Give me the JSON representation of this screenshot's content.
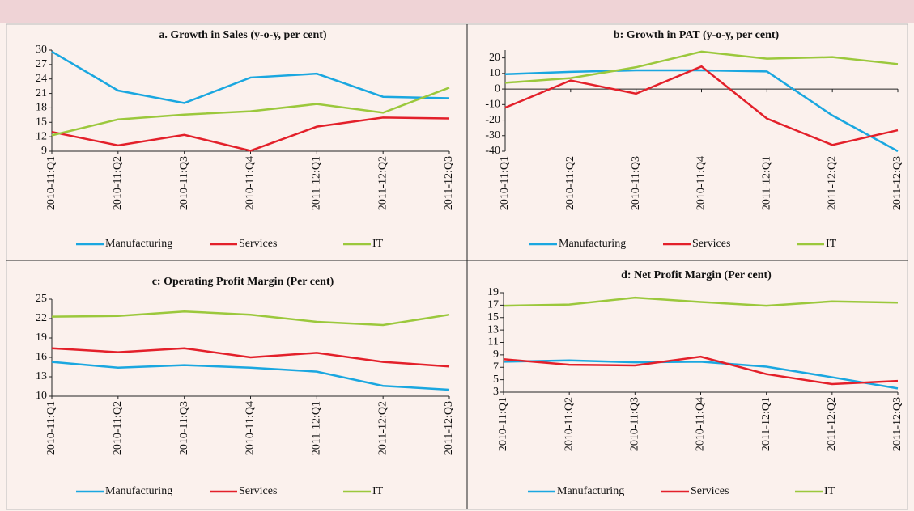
{
  "chart_data": [
    {
      "type": "line",
      "title": "a. Growth in Sales (y-o-y, per cent)",
      "categories": [
        "2010-11:Q1",
        "2010-11:Q2",
        "2010-11:Q3",
        "2010-11:Q4",
        "2011-12:Q1",
        "2011-12:Q2",
        "2011-12:Q3"
      ],
      "series": [
        {
          "name": "Manufacturing",
          "color": "#1aa7e0",
          "values": [
            29.7,
            21.6,
            19.0,
            24.3,
            25.1,
            20.3,
            20.0
          ]
        },
        {
          "name": "Services",
          "color": "#e3202a",
          "values": [
            13.0,
            10.2,
            12.4,
            9.1,
            14.1,
            16.0,
            15.8
          ]
        },
        {
          "name": "IT",
          "color": "#9bc83c",
          "values": [
            12.3,
            15.6,
            16.6,
            17.3,
            18.8,
            17.0,
            22.2
          ]
        }
      ],
      "ylim": [
        9,
        30
      ],
      "yticks": [
        9,
        12,
        15,
        18,
        21,
        24,
        27,
        30
      ]
    },
    {
      "type": "line",
      "title": "b: Growth  in PAT (y-o-y, per cent)",
      "categories": [
        "2010-11:Q1",
        "2010-11:Q2",
        "2010-11:Q3",
        "2010-11:Q4",
        "2011-12:Q1",
        "2011-12:Q2",
        "2011-12:Q3"
      ],
      "series": [
        {
          "name": "Manufacturing",
          "color": "#1aa7e0",
          "values": [
            9.5,
            11,
            12,
            12,
            11.3,
            -17,
            -40
          ]
        },
        {
          "name": "Services",
          "color": "#e3202a",
          "values": [
            -12,
            5.5,
            -3,
            14.5,
            -19,
            -36,
            -26.5
          ]
        },
        {
          "name": "IT",
          "color": "#9bc83c",
          "values": [
            4,
            7,
            14,
            24,
            19.5,
            20.5,
            16
          ]
        }
      ],
      "ylim": [
        -40,
        25
      ],
      "yticks": [
        -40,
        -30,
        -20,
        -10,
        0,
        10,
        20
      ]
    },
    {
      "type": "line",
      "title": "c: Operating Profit Margin (Per cent)",
      "categories": [
        "2010-11:Q1",
        "2010-11:Q2",
        "2010-11:Q3",
        "2010-11:Q4",
        "2011-12:Q1",
        "2011-12:Q2",
        "2011-12:Q3"
      ],
      "series": [
        {
          "name": "Manufacturing",
          "color": "#1aa7e0",
          "values": [
            15.3,
            14.4,
            14.8,
            14.4,
            13.8,
            11.6,
            11.0
          ]
        },
        {
          "name": "Services",
          "color": "#e3202a",
          "values": [
            17.4,
            16.8,
            17.4,
            16.0,
            16.7,
            15.3,
            14.6
          ]
        },
        {
          "name": "IT",
          "color": "#9bc83c",
          "values": [
            22.3,
            22.4,
            23.1,
            22.6,
            21.5,
            21.0,
            22.6
          ]
        }
      ],
      "ylim": [
        10,
        25
      ],
      "yticks": [
        10,
        13,
        16,
        19,
        22,
        25
      ]
    },
    {
      "type": "line",
      "title": "d: Net Profit Margin (Per cent)",
      "categories": [
        "2010-11:Q1",
        "2010-11:Q2",
        "2010-11:Q3",
        "2010-11:Q4",
        "2011-12:Q1",
        "2011-12:Q2",
        "2011-12:Q3"
      ],
      "series": [
        {
          "name": "Manufacturing",
          "color": "#1aa7e0",
          "values": [
            7.9,
            8.1,
            7.8,
            7.9,
            7.1,
            5.4,
            3.6
          ]
        },
        {
          "name": "Services",
          "color": "#e3202a",
          "values": [
            8.3,
            7.4,
            7.3,
            8.7,
            5.9,
            4.3,
            4.8
          ]
        },
        {
          "name": "IT",
          "color": "#9bc83c",
          "values": [
            16.9,
            17.1,
            18.2,
            17.5,
            16.9,
            17.6,
            17.4
          ]
        }
      ],
      "ylim": [
        3,
        19
      ],
      "yticks": [
        3,
        5,
        7,
        9,
        11,
        13,
        15,
        17,
        19
      ]
    }
  ]
}
